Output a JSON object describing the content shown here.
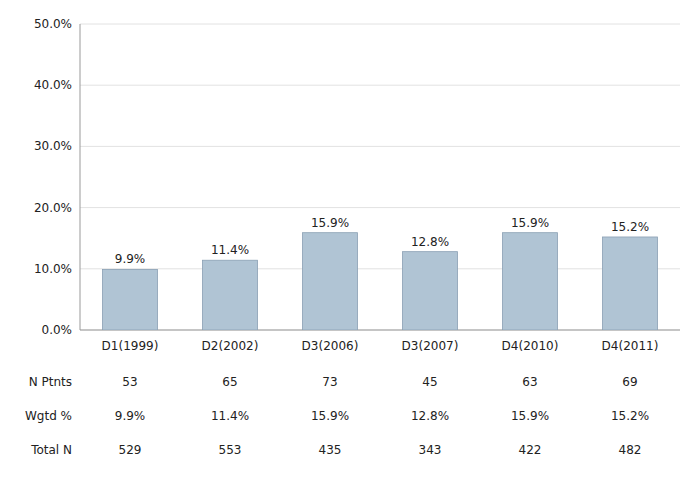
{
  "chart_data": {
    "type": "bar",
    "categories": [
      "D1(1999)",
      "D2(2002)",
      "D3(2006)",
      "D3(2007)",
      "D4(2010)",
      "D4(2011)"
    ],
    "values": [
      9.9,
      11.4,
      15.9,
      12.8,
      15.9,
      15.2
    ],
    "value_labels": [
      "9.9%",
      "11.4%",
      "15.9%",
      "12.8%",
      "15.9%",
      "15.2%"
    ],
    "data_labels": true,
    "color": "#b0c4d4",
    "ylim": [
      0,
      50
    ],
    "yticks": [
      {
        "value": 0,
        "label": "0.0%"
      },
      {
        "value": 10,
        "label": "10.0%"
      },
      {
        "value": 20,
        "label": "20.0%"
      },
      {
        "value": 30,
        "label": "30.0%"
      },
      {
        "value": 40,
        "label": "40.0%"
      },
      {
        "value": 50,
        "label": "50.0%"
      }
    ],
    "grid": true,
    "table": {
      "rows": [
        {
          "name": "N Ptnts",
          "values": [
            53,
            65,
            73,
            45,
            63,
            69
          ]
        },
        {
          "name": "Wgtd %",
          "values": [
            9.9,
            11.4,
            15.9,
            12.8,
            15.9,
            15.2
          ],
          "value_labels": [
            "9.9%",
            "11.4%",
            "15.9%",
            "12.8%",
            "15.9%",
            "15.2%"
          ]
        },
        {
          "name": "Total N",
          "values": [
            529,
            553,
            435,
            343,
            422,
            482
          ]
        }
      ]
    }
  }
}
